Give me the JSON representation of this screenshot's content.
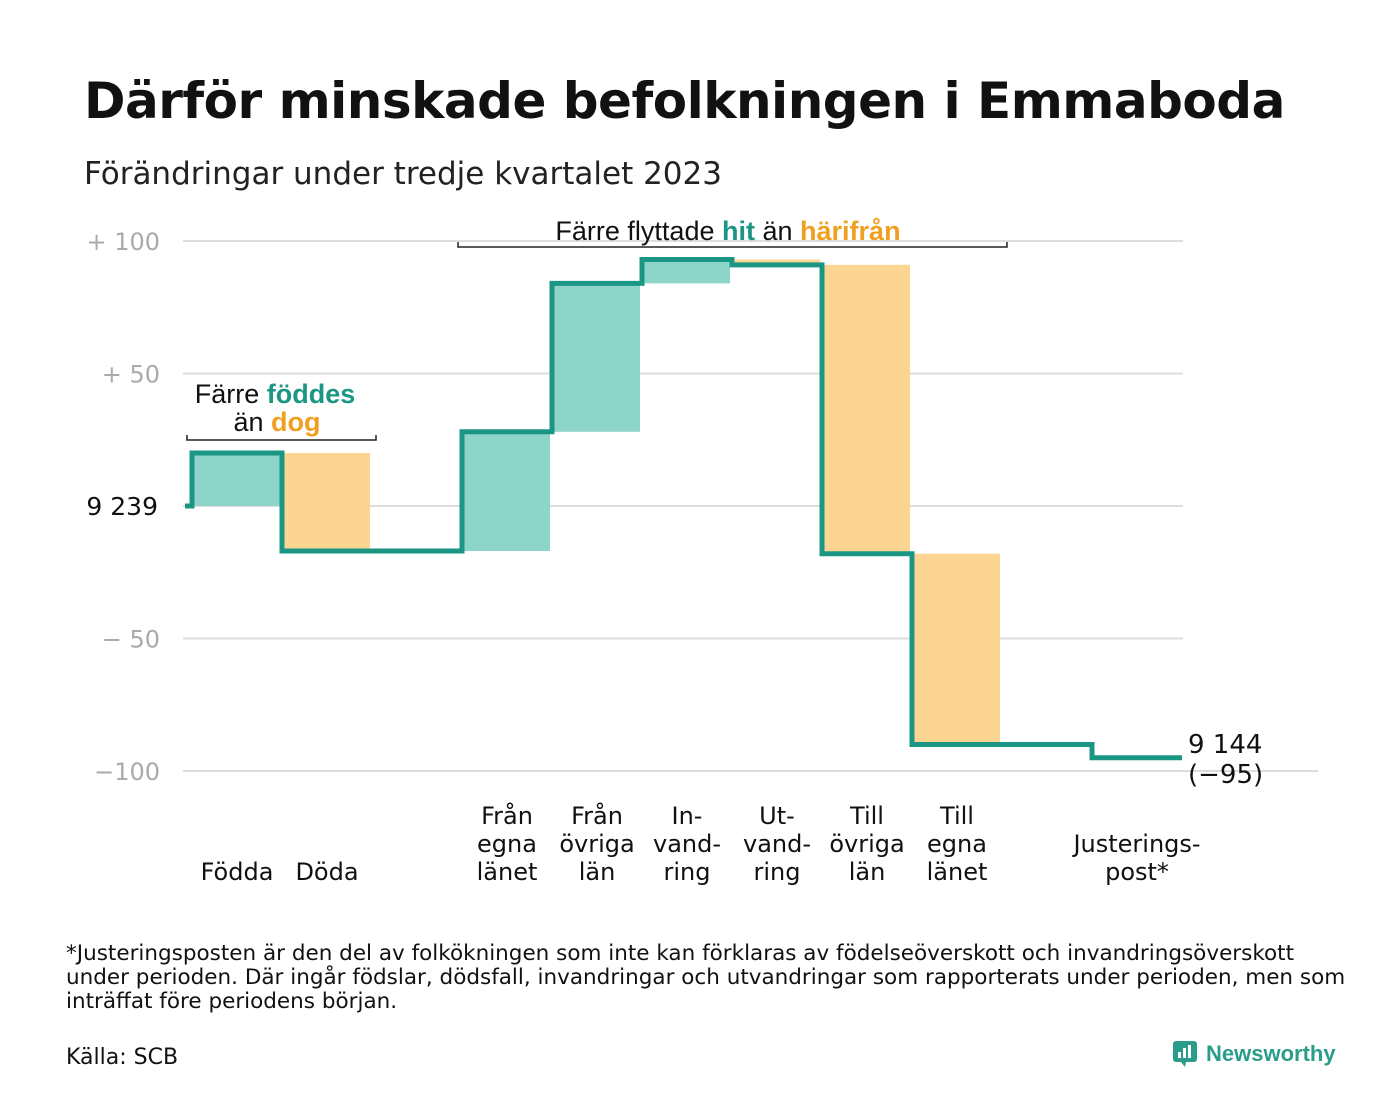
{
  "title": "Därför minskade befolkningen i Emmaboda",
  "subtitle": "Förändringar under tredje kvartalet 2023",
  "chart_data": {
    "type": "waterfall",
    "start_value": 9239,
    "start_label": "9  239",
    "end_value": 9144,
    "end_label_line1": "9 144",
    "end_label_line2": "(−95)",
    "ylim": [
      -100,
      100
    ],
    "yticks": [
      {
        "value": 100,
        "label": "+  100"
      },
      {
        "value": 50,
        "label": "+  50"
      },
      {
        "value": 0,
        "label": ""
      },
      {
        "value": -50,
        "label": "−  50"
      },
      {
        "value": -100,
        "label": "−100"
      }
    ],
    "categories": [
      {
        "label": [
          "Födda"
        ],
        "value": 20,
        "type": "increase"
      },
      {
        "label": [
          "Döda"
        ],
        "value": -37,
        "type": "decrease"
      },
      {
        "label": [
          "Från",
          "egna",
          "länet"
        ],
        "value": 45,
        "type": "increase"
      },
      {
        "label": [
          "Från",
          "övriga",
          "län"
        ],
        "value": 56,
        "type": "increase"
      },
      {
        "label": [
          "In-",
          "vand-",
          "ring"
        ],
        "value": 9,
        "type": "increase"
      },
      {
        "label": [
          "Ut-",
          "vand-",
          "ring"
        ],
        "value": -2,
        "type": "decrease"
      },
      {
        "label": [
          "Till",
          "övriga",
          "län"
        ],
        "value": -109,
        "type": "decrease"
      },
      {
        "label": [
          "Till",
          "egna",
          "länet"
        ],
        "value": -72,
        "type": "decrease"
      },
      {
        "label": [
          "Justerings-",
          "post*"
        ],
        "value": -5,
        "type": "adjustment"
      }
    ],
    "annotations": {
      "births": {
        "line1_pre": "Färre ",
        "line1_hl": "föddes",
        "line2_pre": "än ",
        "line2_hl": "dog"
      },
      "migration": {
        "pre": "Färre flyttade ",
        "hl1": "hit",
        "mid": " än ",
        "hl2": "härifrån"
      }
    },
    "colors": {
      "increase": "#8dd4c9",
      "decrease": "#fcd592",
      "line": "#1b9684",
      "teal_text": "#1b9684",
      "orange_text": "#f0a020",
      "grid": "#dddddd"
    }
  },
  "footnote": "*Justeringsposten är den del av folkökningen som inte kan förklaras av födelseöverskott och invandringsöverskott under perioden. Där ingår födslar, dödsfall, invandringar och utvandringar som rapporterats under perioden, men som inträffat före periodens början.",
  "source": "Källa: SCB",
  "brand": {
    "name": "Newsworthy",
    "icon": "newsworthy-chart-icon"
  }
}
